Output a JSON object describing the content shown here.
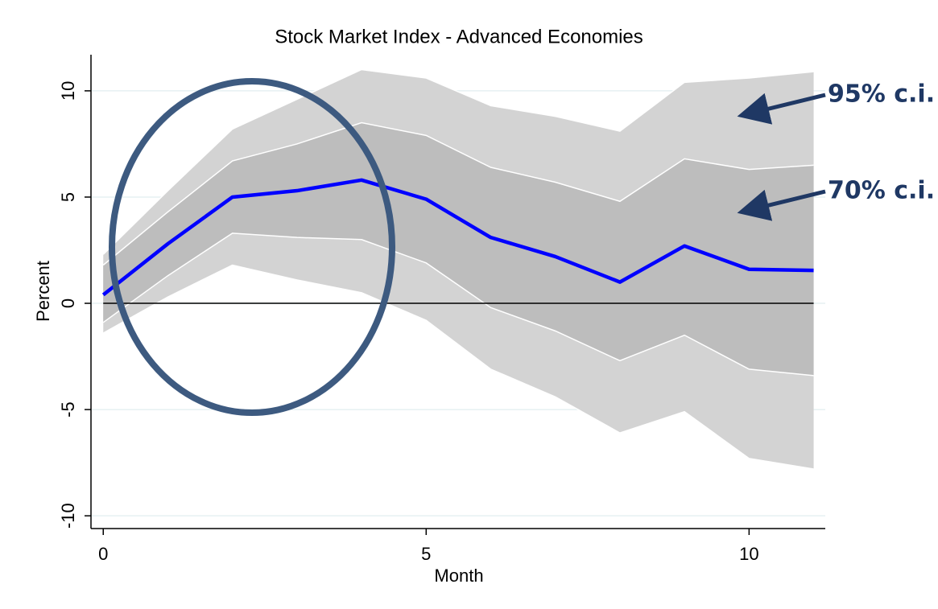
{
  "chart_data": {
    "type": "line",
    "title": "Stock Market Index - Advanced Economies",
    "xlabel": "Month",
    "ylabel": "Percent",
    "x": [
      0,
      1,
      2,
      3,
      4,
      5,
      6,
      7,
      8,
      9,
      10,
      11
    ],
    "series": [
      {
        "color": "#0000ff",
        "values": [
          0.4,
          2.8,
          5.0,
          5.3,
          5.8,
          4.9,
          3.1,
          2.2,
          1.0,
          2.7,
          1.6,
          1.55
        ]
      }
    ],
    "bands": [
      {
        "color": "#d3d3d3",
        "upper": [
          2.3,
          5.3,
          8.2,
          9.6,
          11.0,
          10.6,
          9.3,
          8.8,
          8.1,
          10.4,
          10.6,
          10.9
        ],
        "lower": [
          -1.4,
          0.3,
          1.8,
          1.1,
          0.5,
          -0.8,
          -3.1,
          -4.4,
          -6.1,
          -5.1,
          -7.3,
          -7.8
        ]
      },
      {
        "color": "#bdbdbd",
        "upper": [
          1.8,
          4.3,
          6.7,
          7.5,
          8.5,
          7.9,
          6.4,
          5.7,
          4.8,
          6.8,
          6.3,
          6.5
        ],
        "lower": [
          -0.9,
          1.3,
          3.3,
          3.1,
          3.0,
          1.9,
          -0.2,
          -1.3,
          -2.7,
          -1.5,
          -3.1,
          -3.4
        ]
      }
    ],
    "hline": 0,
    "xlim": [
      -0.19,
      11.18
    ],
    "ylim": [
      -10.6,
      11.7
    ],
    "xticks": [
      0,
      5,
      10
    ],
    "yticks": [
      -10,
      -5,
      0,
      5,
      10
    ],
    "grid": true,
    "annotations": [
      "95% c.i.",
      "70% c.i."
    ]
  }
}
